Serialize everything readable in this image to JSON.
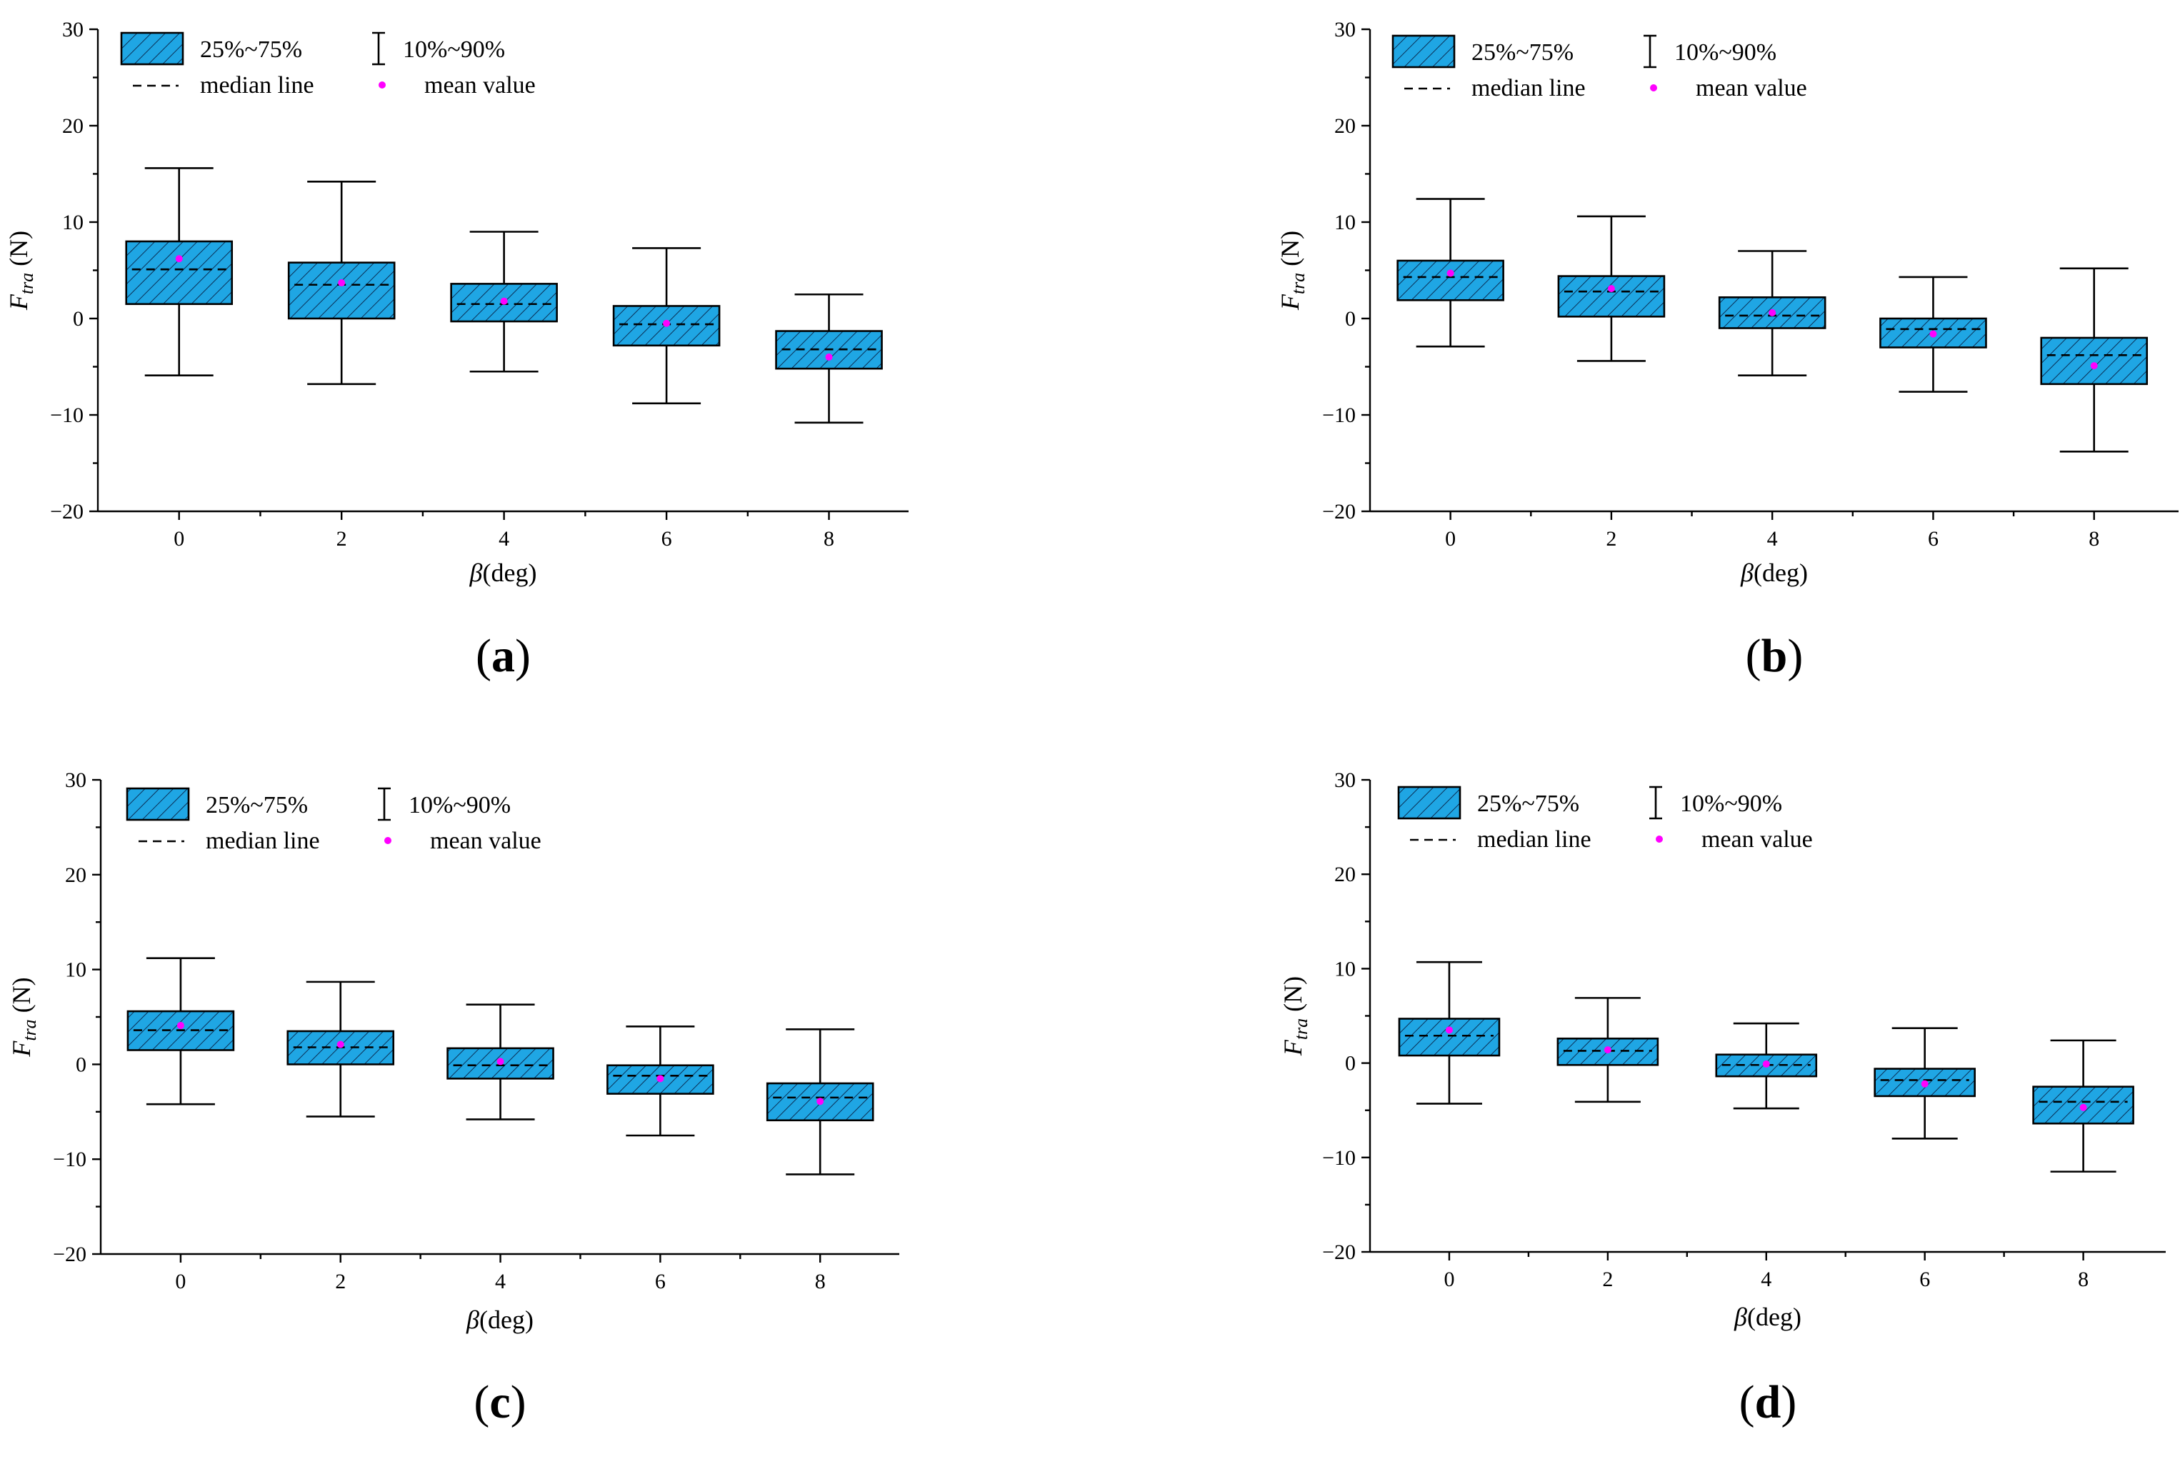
{
  "style": {
    "box_fill": "#1fa6e4",
    "hatch_color": "#0b2f55",
    "mean_color": "#ff00ff",
    "axis_color": "#000000"
  },
  "legend": {
    "box_label": "25%~75%",
    "whisker_label": "10%~90%",
    "median_label": "median line",
    "mean_label": "mean value"
  },
  "chart_data": [
    {
      "panel": "a",
      "type": "box",
      "xlabel_symbol": "β",
      "xlabel_unit": "(deg)",
      "ylabel_symbol": "F",
      "ylabel_sub": "tra",
      "ylabel_unit": " (N)",
      "ylim": [
        -20,
        30
      ],
      "yticks": [
        -20,
        -10,
        0,
        10,
        20,
        30
      ],
      "ytick_labels": [
        "−20",
        "−10",
        "0",
        "10",
        "20",
        "30"
      ],
      "categories": [
        "0",
        "2",
        "4",
        "6",
        "8"
      ],
      "x": [
        0,
        2,
        4,
        6,
        8
      ],
      "q1": [
        1.5,
        0.0,
        -0.3,
        -2.8,
        -5.2
      ],
      "q3": [
        8.0,
        5.8,
        3.6,
        1.3,
        -1.3
      ],
      "p10": [
        -5.9,
        -6.8,
        -5.5,
        -8.8,
        -10.8
      ],
      "p90": [
        15.6,
        14.2,
        9.0,
        7.3,
        2.5
      ],
      "median": [
        5.1,
        3.5,
        1.5,
        -0.6,
        -3.2
      ],
      "mean": [
        6.2,
        3.7,
        1.8,
        -0.5,
        -4.0
      ]
    },
    {
      "panel": "b",
      "type": "box",
      "xlabel_symbol": "β",
      "xlabel_unit": "(deg)",
      "ylabel_symbol": "F",
      "ylabel_sub": "tra",
      "ylabel_unit": " (N)",
      "ylim": [
        -20,
        30
      ],
      "yticks": [
        -20,
        -10,
        0,
        10,
        20,
        30
      ],
      "ytick_labels": [
        "−20",
        "−10",
        "0",
        "10",
        "20",
        "30"
      ],
      "categories": [
        "0",
        "2",
        "4",
        "6",
        "8"
      ],
      "x": [
        0,
        2,
        4,
        6,
        8
      ],
      "q1": [
        1.9,
        0.2,
        -1.0,
        -3.0,
        -6.8
      ],
      "q3": [
        6.0,
        4.4,
        2.2,
        0.0,
        -2.0
      ],
      "p10": [
        -2.9,
        -4.4,
        -5.9,
        -7.6,
        -13.8
      ],
      "p90": [
        12.4,
        10.6,
        7.0,
        4.3,
        5.2
      ],
      "median": [
        4.3,
        2.8,
        0.3,
        -1.1,
        -3.8
      ],
      "mean": [
        4.7,
        3.1,
        0.6,
        -1.6,
        -4.9
      ]
    },
    {
      "panel": "c",
      "type": "box",
      "xlabel_symbol": "β",
      "xlabel_unit": "(deg)",
      "ylabel_symbol": "F",
      "ylabel_sub": "tra",
      "ylabel_unit": " (N)",
      "ylim": [
        -20,
        30
      ],
      "yticks": [
        -20,
        -10,
        0,
        10,
        20,
        30
      ],
      "ytick_labels": [
        "−20",
        "−10",
        "0",
        "10",
        "20",
        "30"
      ],
      "categories": [
        "0",
        "2",
        "4",
        "6",
        "8"
      ],
      "x": [
        0,
        2,
        4,
        6,
        8
      ],
      "q1": [
        1.5,
        0.0,
        -1.5,
        -3.1,
        -5.9
      ],
      "q3": [
        5.6,
        3.5,
        1.7,
        -0.1,
        -2.0
      ],
      "p10": [
        -4.2,
        -5.5,
        -5.8,
        -7.5,
        -11.6
      ],
      "p90": [
        11.2,
        8.7,
        6.3,
        4.0,
        3.7
      ],
      "median": [
        3.6,
        1.8,
        -0.1,
        -1.2,
        -3.5
      ],
      "mean": [
        4.1,
        2.1,
        0.3,
        -1.5,
        -3.9
      ]
    },
    {
      "panel": "d",
      "type": "box",
      "xlabel_symbol": "β",
      "xlabel_unit": "(deg)",
      "ylabel_symbol": "F",
      "ylabel_sub": "tra",
      "ylabel_unit": " (N)",
      "ylim": [
        -20,
        30
      ],
      "yticks": [
        -20,
        -10,
        0,
        10,
        20,
        30
      ],
      "ytick_labels": [
        "−20",
        "−10",
        "0",
        "10",
        "20",
        "30"
      ],
      "categories": [
        "0",
        "2",
        "4",
        "6",
        "8"
      ],
      "x": [
        0,
        2,
        4,
        6,
        8
      ],
      "q1": [
        0.8,
        -0.2,
        -1.4,
        -3.5,
        -6.4
      ],
      "q3": [
        4.7,
        2.6,
        0.9,
        -0.6,
        -2.5
      ],
      "p10": [
        -4.3,
        -4.1,
        -4.8,
        -8.0,
        -11.5
      ],
      "p90": [
        10.7,
        6.9,
        4.2,
        3.7,
        2.4
      ],
      "median": [
        2.9,
        1.3,
        -0.2,
        -1.8,
        -4.1
      ],
      "mean": [
        3.5,
        1.4,
        -0.1,
        -2.2,
        -4.7
      ]
    }
  ]
}
